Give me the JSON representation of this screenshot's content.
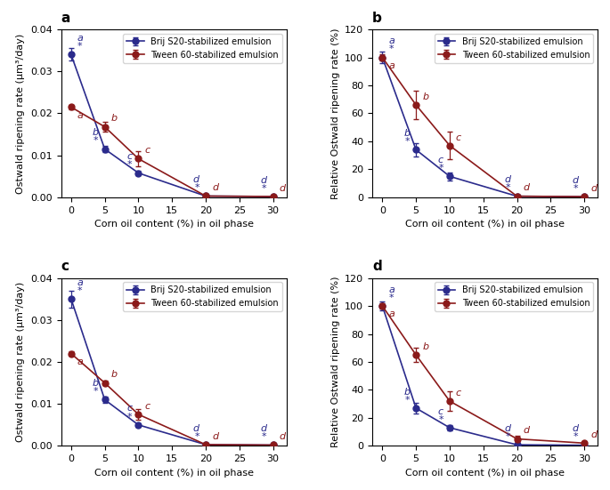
{
  "chart_data": [
    {
      "type": "line",
      "title": "a",
      "x": [
        0,
        5,
        10,
        20,
        30
      ],
      "xlabel": "Corn oil content (%) in oil phase",
      "ylabel": "Ostwald ripening rate (μm³/day)",
      "xlim": [
        -1.5,
        32
      ],
      "xticks": [
        0,
        5,
        10,
        15,
        20,
        25,
        30
      ],
      "ylim": [
        0,
        0.04
      ],
      "yticks": [
        {
          "value": 0.0,
          "label": "0.00"
        },
        0.01,
        0.02,
        0.03,
        0.04
      ],
      "legend": "upper right",
      "series": [
        {
          "name": "Brij S20-stabilized emulsion",
          "color": "#2b2b8c",
          "marker": "o",
          "values": [
            0.034,
            0.0115,
            0.0058,
            0.0003,
            0.0002
          ],
          "errors": [
            0.0015,
            0.0007,
            0.0005,
            0.0001,
            0.0001
          ],
          "annotations": [
            [
              "a",
              "*"
            ],
            [
              "b",
              "*"
            ],
            [
              "c",
              "*"
            ],
            [
              "d",
              "*"
            ],
            [
              "d",
              "*"
            ]
          ]
        },
        {
          "name": "Tween 60-stabilized emulsion",
          "color": "#8b1a1a",
          "marker": "o",
          "values": [
            0.0215,
            0.0168,
            0.0092,
            0.0003,
            0.0002
          ],
          "errors": [
            0.0005,
            0.0012,
            0.0018,
            0.0001,
            0.0001
          ],
          "annotations": [
            [
              "a"
            ],
            [
              "b"
            ],
            [
              "c"
            ],
            [
              "d"
            ],
            [
              "d"
            ]
          ]
        }
      ]
    },
    {
      "type": "line",
      "title": "b",
      "x": [
        0,
        5,
        10,
        20,
        30
      ],
      "xlabel": "Corn oil content (%) in oil phase",
      "ylabel": "Relative Ostwald ripening rate (%)",
      "xlim": [
        -1.5,
        32
      ],
      "xticks": [
        0,
        5,
        10,
        15,
        20,
        25,
        30
      ],
      "ylim": [
        0,
        120
      ],
      "yticks": [
        0,
        20,
        40,
        60,
        80,
        100,
        120
      ],
      "legend": "upper right",
      "series": [
        {
          "name": "Brij S20-stabilized emulsion",
          "color": "#2b2b8c",
          "marker": "o",
          "values": [
            100,
            34,
            15,
            0.8,
            0.5
          ],
          "errors": [
            4,
            5,
            3,
            0.5,
            0.3
          ],
          "annotations": [
            [
              "a",
              "*"
            ],
            [
              "b",
              "*"
            ],
            [
              "c",
              "*"
            ],
            [
              "d",
              "*"
            ],
            [
              "d",
              "*"
            ]
          ]
        },
        {
          "name": "Tween 60-stabilized emulsion",
          "color": "#8b1a1a",
          "marker": "o",
          "values": [
            100,
            66,
            37,
            0.8,
            0.5
          ],
          "errors": [
            2,
            10,
            10,
            0.5,
            0.3
          ],
          "annotations": [
            [
              "a"
            ],
            [
              "b"
            ],
            [
              "c"
            ],
            [
              "d"
            ],
            [
              "d"
            ]
          ]
        }
      ]
    },
    {
      "type": "line",
      "title": "c",
      "x": [
        0,
        5,
        10,
        20,
        30
      ],
      "xlabel": "Corn oil content (%) in oil phase",
      "ylabel": "Ostwald ripening rate (μm³/day)",
      "xlim": [
        -1.5,
        32
      ],
      "xticks": [
        0,
        5,
        10,
        15,
        20,
        25,
        30
      ],
      "ylim": [
        0,
        0.04
      ],
      "yticks": [
        {
          "value": 0.0,
          "label": "0.00"
        },
        0.01,
        0.02,
        0.03,
        0.04
      ],
      "legend": "upper right",
      "series": [
        {
          "name": "Brij S20-stabilized emulsion",
          "color": "#2b2b8c",
          "marker": "o",
          "values": [
            0.035,
            0.011,
            0.005,
            0.0003,
            0.0002
          ],
          "errors": [
            0.002,
            0.0008,
            0.0004,
            0.0001,
            0.0001
          ],
          "annotations": [
            [
              "a",
              "*"
            ],
            [
              "b",
              "*"
            ],
            [
              "c",
              "*"
            ],
            [
              "d",
              "*"
            ],
            [
              "d",
              "*"
            ]
          ]
        },
        {
          "name": "Tween 60-stabilized emulsion",
          "color": "#8b1a1a",
          "marker": "o",
          "values": [
            0.022,
            0.015,
            0.0075,
            0.0003,
            0.0002
          ],
          "errors": [
            0.0005,
            0.0005,
            0.0012,
            0.0001,
            0.0001
          ],
          "annotations": [
            [
              "a"
            ],
            [
              "b"
            ],
            [
              "c"
            ],
            [
              "d"
            ],
            [
              "d"
            ]
          ]
        }
      ]
    },
    {
      "type": "line",
      "title": "d",
      "x": [
        0,
        5,
        10,
        20,
        30
      ],
      "xlabel": "Corn oil content (%) in oil phase",
      "ylabel": "Relative Ostwald ripening rate (%)",
      "xlim": [
        -1.5,
        32
      ],
      "xticks": [
        0,
        5,
        10,
        15,
        20,
        25,
        30
      ],
      "ylim": [
        0,
        120
      ],
      "yticks": [
        0,
        20,
        40,
        60,
        80,
        100,
        120
      ],
      "legend": "upper right",
      "series": [
        {
          "name": "Brij S20-stabilized emulsion",
          "color": "#2b2b8c",
          "marker": "o",
          "values": [
            100,
            27,
            13,
            0.8,
            0.5
          ],
          "errors": [
            3,
            4,
            2,
            0.5,
            0.3
          ],
          "annotations": [
            [
              "a",
              "*"
            ],
            [
              "b",
              "*"
            ],
            [
              "c",
              "*"
            ],
            [
              "d",
              "*"
            ],
            [
              "d",
              "*"
            ]
          ]
        },
        {
          "name": "Tween 60-stabilized emulsion",
          "color": "#8b1a1a",
          "marker": "o",
          "values": [
            100,
            65,
            32,
            5,
            2
          ],
          "errors": [
            2,
            5,
            7,
            2,
            1
          ],
          "annotations": [
            [
              "a"
            ],
            [
              "b"
            ],
            [
              "c"
            ],
            [
              "d"
            ],
            [
              "d"
            ]
          ]
        }
      ]
    }
  ]
}
